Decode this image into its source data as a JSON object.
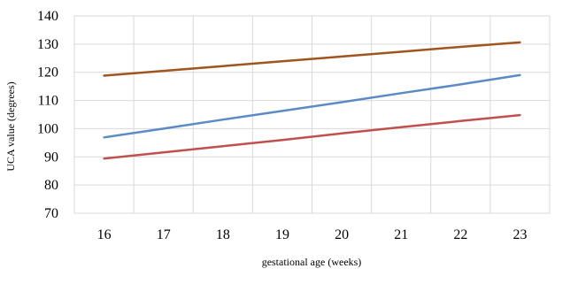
{
  "chart_data": {
    "type": "line",
    "title": "",
    "xlabel": "gestational age (weeks)",
    "ylabel": "UCA value (degrees)",
    "x": [
      16,
      17,
      18,
      19,
      20,
      21,
      22,
      23
    ],
    "xlim": [
      15.5,
      23.5
    ],
    "ylim": [
      70,
      140
    ],
    "yticks": [
      70,
      80,
      90,
      100,
      110,
      120,
      130,
      140
    ],
    "grid": true,
    "legend": "none",
    "series": [
      {
        "color": "#A0541E",
        "values": [
          118.8,
          120.5,
          122.2,
          123.9,
          125.6,
          127.3,
          129.0,
          130.6
        ]
      },
      {
        "color": "#5B8BC5",
        "values": [
          96.9,
          100.0,
          103.2,
          106.3,
          109.4,
          112.6,
          115.7,
          119.0
        ]
      },
      {
        "color": "#C0504D",
        "values": [
          89.4,
          91.6,
          93.8,
          96.0,
          98.3,
          100.5,
          102.7,
          104.8
        ]
      }
    ]
  }
}
